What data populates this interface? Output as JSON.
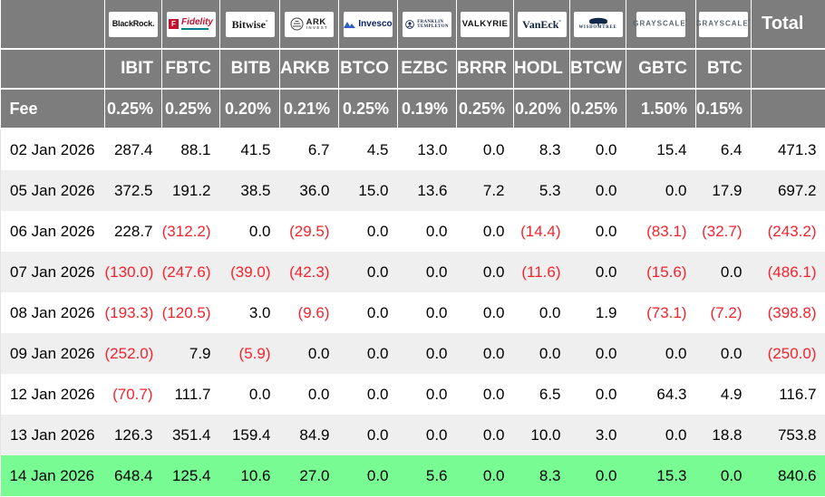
{
  "labels": {
    "fee": "Fee",
    "total": "Total"
  },
  "colors": {
    "header_bg": "#7d7d7d",
    "row_alt": "#efefef",
    "highlight_row": "#79fb94",
    "negative": "#f5232d"
  },
  "funds": [
    {
      "issuer": "BlackRock",
      "ticker": "IBIT",
      "fee": "0.25%",
      "logo": "blackrock",
      "logo_text": "BlackRock."
    },
    {
      "issuer": "Fidelity",
      "ticker": "FBTC",
      "fee": "0.25%",
      "logo": "fidelity",
      "logo_text": "Fidelity",
      "logo_icon_text": "F"
    },
    {
      "issuer": "Bitwise",
      "ticker": "BITB",
      "fee": "0.20%",
      "logo": "bitwise",
      "logo_text": "Bitwise"
    },
    {
      "issuer": "ARK Invest",
      "ticker": "ARKB",
      "fee": "0.21%",
      "logo": "ark",
      "logo_text": "ARK",
      "logo_text2": "INVEST"
    },
    {
      "issuer": "Invesco",
      "ticker": "BTCO",
      "fee": "0.25%",
      "logo": "invesco",
      "logo_text": "Invesco"
    },
    {
      "issuer": "Franklin Templeton",
      "ticker": "EZBC",
      "fee": "0.19%",
      "logo": "franklin",
      "logo_text": "FRANKLIN",
      "logo_text2": "TEMPLETON"
    },
    {
      "issuer": "Valkyrie",
      "ticker": "BRRR",
      "fee": "0.25%",
      "logo": "valkyrie",
      "logo_text": "VALKYRIE"
    },
    {
      "issuer": "VanEck",
      "ticker": "HODL",
      "fee": "0.20%",
      "logo": "vaneck",
      "logo_text": "VanEck"
    },
    {
      "issuer": "WisdomTree",
      "ticker": "BTCW",
      "fee": "0.25%",
      "logo": "wisdomtree",
      "logo_text": "WISDOMTREE"
    },
    {
      "issuer": "Grayscale",
      "ticker": "GBTC",
      "fee": "1.50%",
      "logo": "grayscale",
      "logo_text": "GRAYSCALE"
    },
    {
      "issuer": "Grayscale",
      "ticker": "BTC",
      "fee": "0.15%",
      "logo": "grayscale",
      "logo_text": "GRAYSCALE"
    }
  ],
  "rows": [
    {
      "date": "02 Jan 2026",
      "values": [
        "287.4",
        "88.1",
        "41.5",
        "6.7",
        "4.5",
        "13.0",
        "0.0",
        "8.3",
        "0.0",
        "15.4",
        "6.4"
      ],
      "total": "471.3",
      "highlight": false
    },
    {
      "date": "05 Jan 2026",
      "values": [
        "372.5",
        "191.2",
        "38.5",
        "36.0",
        "15.0",
        "13.6",
        "7.2",
        "5.3",
        "0.0",
        "0.0",
        "17.9"
      ],
      "total": "697.2",
      "highlight": false
    },
    {
      "date": "06 Jan 2026",
      "values": [
        "228.7",
        "(312.2)",
        "0.0",
        "(29.5)",
        "0.0",
        "0.0",
        "0.0",
        "(14.4)",
        "0.0",
        "(83.1)",
        "(32.7)"
      ],
      "total": "(243.2)",
      "highlight": false
    },
    {
      "date": "07 Jan 2026",
      "values": [
        "(130.0)",
        "(247.6)",
        "(39.0)",
        "(42.3)",
        "0.0",
        "0.0",
        "0.0",
        "(11.6)",
        "0.0",
        "(15.6)",
        "0.0"
      ],
      "total": "(486.1)",
      "highlight": false
    },
    {
      "date": "08 Jan 2026",
      "values": [
        "(193.3)",
        "(120.5)",
        "3.0",
        "(9.6)",
        "0.0",
        "0.0",
        "0.0",
        "0.0",
        "1.9",
        "(73.1)",
        "(7.2)"
      ],
      "total": "(398.8)",
      "highlight": false
    },
    {
      "date": "09 Jan 2026",
      "values": [
        "(252.0)",
        "7.9",
        "(5.9)",
        "0.0",
        "0.0",
        "0.0",
        "0.0",
        "0.0",
        "0.0",
        "0.0",
        "0.0"
      ],
      "total": "(250.0)",
      "highlight": false
    },
    {
      "date": "12 Jan 2026",
      "values": [
        "(70.7)",
        "111.7",
        "0.0",
        "0.0",
        "0.0",
        "0.0",
        "0.0",
        "6.5",
        "0.0",
        "64.3",
        "4.9"
      ],
      "total": "116.7",
      "highlight": false
    },
    {
      "date": "13 Jan 2026",
      "values": [
        "126.3",
        "351.4",
        "159.4",
        "84.9",
        "0.0",
        "0.0",
        "0.0",
        "10.0",
        "3.0",
        "0.0",
        "18.8"
      ],
      "total": "753.8",
      "highlight": false
    },
    {
      "date": "14 Jan 2026",
      "values": [
        "648.4",
        "125.4",
        "10.6",
        "27.0",
        "0.0",
        "5.6",
        "0.0",
        "8.3",
        "0.0",
        "15.3",
        "0.0"
      ],
      "total": "840.6",
      "highlight": true
    }
  ]
}
